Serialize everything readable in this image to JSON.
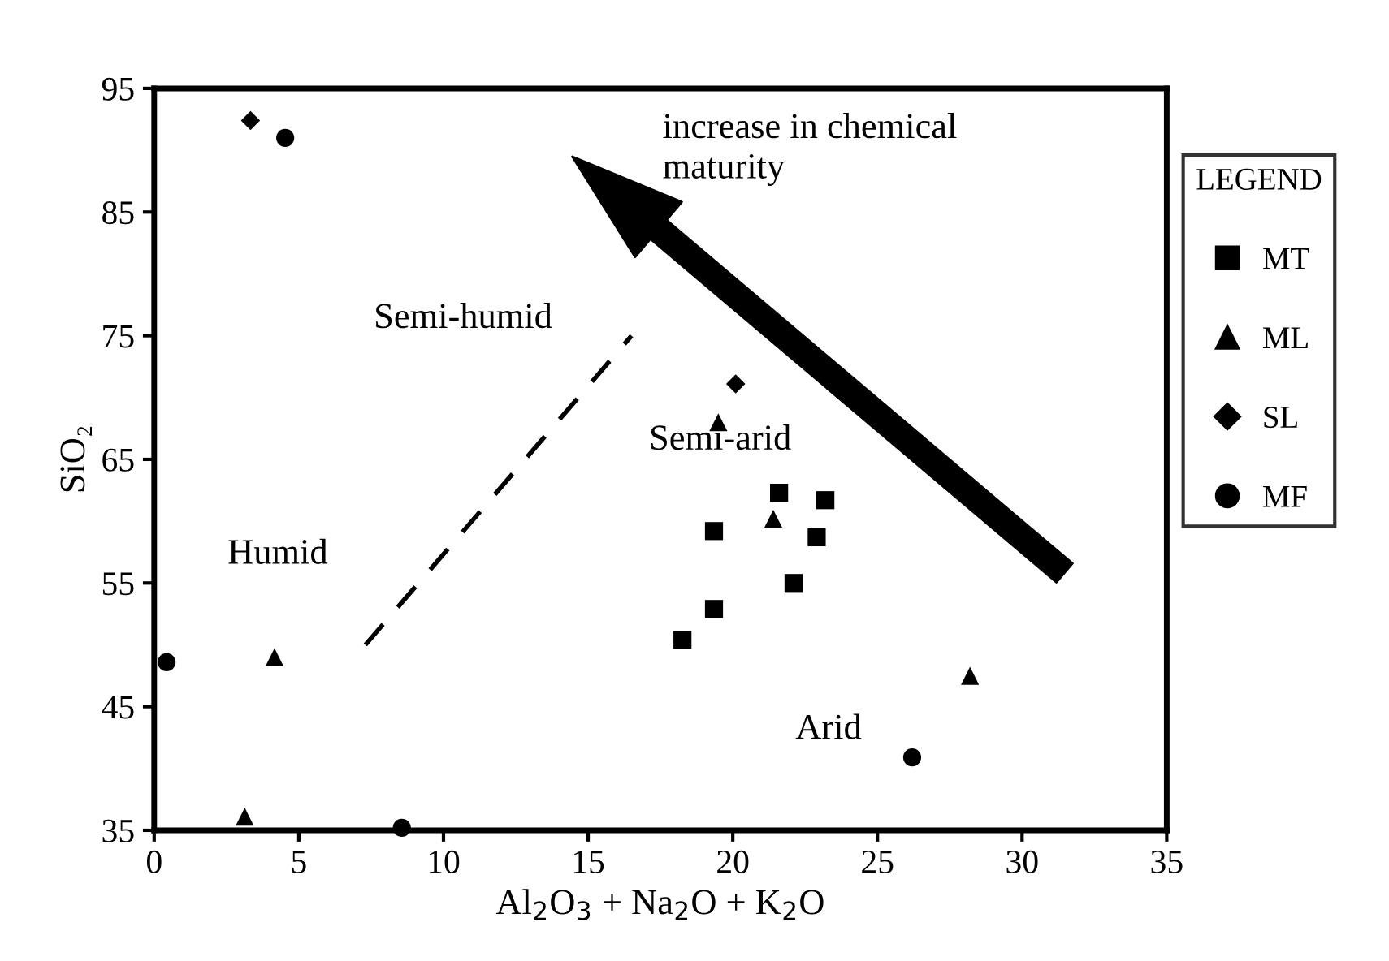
{
  "chart_data": {
    "type": "scatter",
    "xlabel": "Al$_{2}$O$_{3}$ + Na$_{2}$O + K$_{2}$O",
    "ylabel": "SiO₂",
    "xlim": [
      0,
      35
    ],
    "xticks": [
      0,
      5,
      10,
      15,
      20,
      25,
      30,
      35
    ],
    "ylim": [
      35,
      95
    ],
    "yticks": [
      35,
      45,
      55,
      65,
      75,
      85,
      95
    ],
    "grid": false,
    "legend": "right",
    "legend_title": "LEGEND",
    "annotations": [
      "increase in chemical\nmaturity",
      "Semi-humid",
      "Semi-arid",
      "Humid",
      "Arid"
    ],
    "series": [
      {
        "name": "MT",
        "color": "#000000",
        "marker": "square",
        "x": [
          21.6,
          23.2,
          19.35,
          22.9,
          22.1,
          19.35,
          18.26
        ],
        "values": [
          62.3,
          61.7,
          59.2,
          58.7,
          55.0,
          52.9,
          50.4
        ]
      },
      {
        "name": "ML",
        "color": "#000000",
        "marker": "triangle",
        "x": [
          19.5,
          21.4,
          28.2,
          4.16,
          3.13
        ],
        "values": [
          68.0,
          60.2,
          47.5,
          49.0,
          36.1
        ]
      },
      {
        "name": "SL",
        "color": "#000000",
        "marker": "diamond",
        "x": [
          3.33,
          20.1
        ],
        "values": [
          92.4,
          71.1
        ]
      },
      {
        "name": "MF",
        "color": "#000000",
        "marker": "circle",
        "x": [
          4.53,
          0.43,
          8.56,
          26.2
        ],
        "values": [
          91.0,
          48.6,
          35.2,
          40.9
        ]
      },
      {
        "type": "line",
        "color": "#000000",
        "line_style": "dashed",
        "x": [
          7.3,
          16.5
        ],
        "values": [
          50.0,
          75.0
        ]
      }
    ]
  }
}
